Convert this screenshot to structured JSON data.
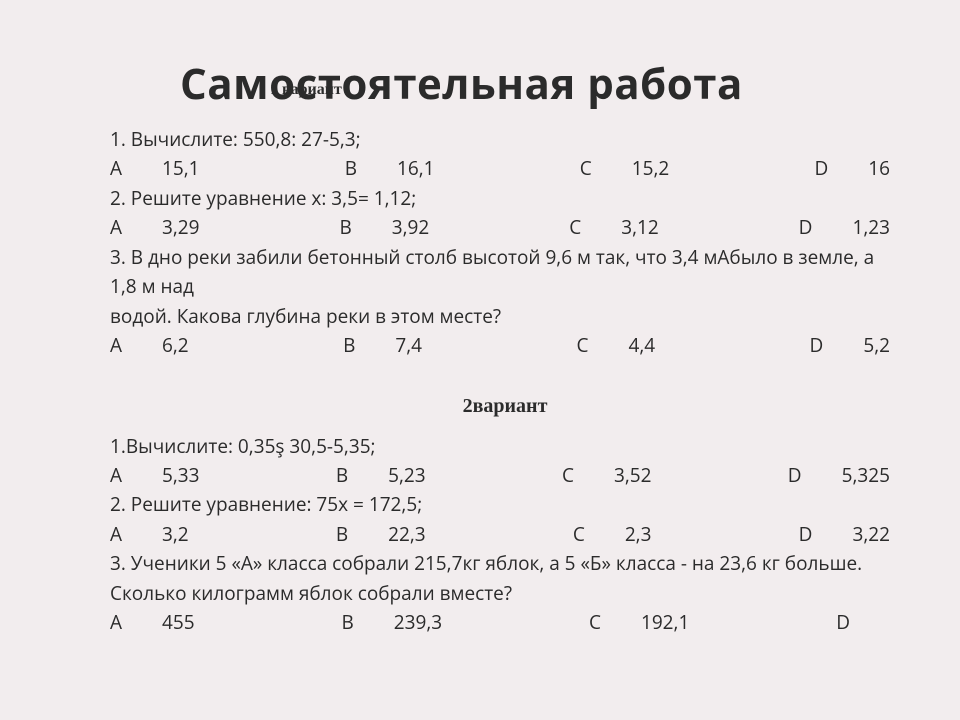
{
  "title": "Самостоятельная работа",
  "variant1_label": "1 вариант",
  "variant2_label": "2вариант",
  "v1": {
    "q1": "1.  Вычислите: 550,8: 27-5,3;",
    "q1_opts": {
      "A": "А",
      "Av": "15,1",
      "B": "В",
      "Bv": "16,1",
      "C": "С",
      "Cv": "15,2",
      "D": "D",
      "Dv": "16"
    },
    "q2": "2.  Решите уравнение х: 3,5= 1,12;",
    "q2_opts": {
      "A": "А",
      "Av": "3,29",
      "B": "В",
      "Bv": "3,92",
      "C": "С",
      "Cv": "3,12",
      "D": "D",
      "Dv": "1,23"
    },
    "q3a": "3.  В дно реки забили бетонный столб высотой 9,6 м так, что 3,4 мАбыло в земле, а 1,8 м над",
    "q3b": " водой. Какова глубина реки в этом месте?",
    "q3_opts": {
      "A": "А",
      "Av": "6,2",
      "B": "В",
      "Bv": "7,4",
      "C": "С",
      "Cv": "4,4",
      "D": "D",
      "Dv": "5,2"
    }
  },
  "v2": {
    "q1": "1.Вычислите: 0,35ş 30,5-5,35;",
    "q1_opts": {
      "A": "А",
      "Av": "5,33",
      "B": "В",
      "Bv": "5,23",
      "C": "С",
      "Cv": "3,52",
      "D": "D",
      "Dv": "5,325"
    },
    "q2": "2. Решите уравнение: 75х = 172,5;",
    "q2_opts": {
      "A": "А",
      "Av": "3,2",
      "B": "В",
      "Bv": "22,3",
      "C": "С",
      "Cv": "2,3",
      "D": "D",
      "Dv": "3,22"
    },
    "q3": "3. Ученики 5 «А» класса собрали 215,7кг яблок, а 5 «Б» класса - на 23,6 кг больше. Сколько килограмм яблок собрали вместе?",
    "q3_opts": {
      "A": "А",
      "Av": "455",
      "B": "В",
      "Bv": "239,3",
      "C": "С",
      "Cv": "192,1",
      "D": "D",
      "Dv": ""
    }
  },
  "colors": {
    "bg": "#f2edee",
    "text": "#2b2b2b"
  },
  "fonts": {
    "title_size": 42,
    "body_size": 19,
    "variant_serif": "Times New Roman"
  }
}
